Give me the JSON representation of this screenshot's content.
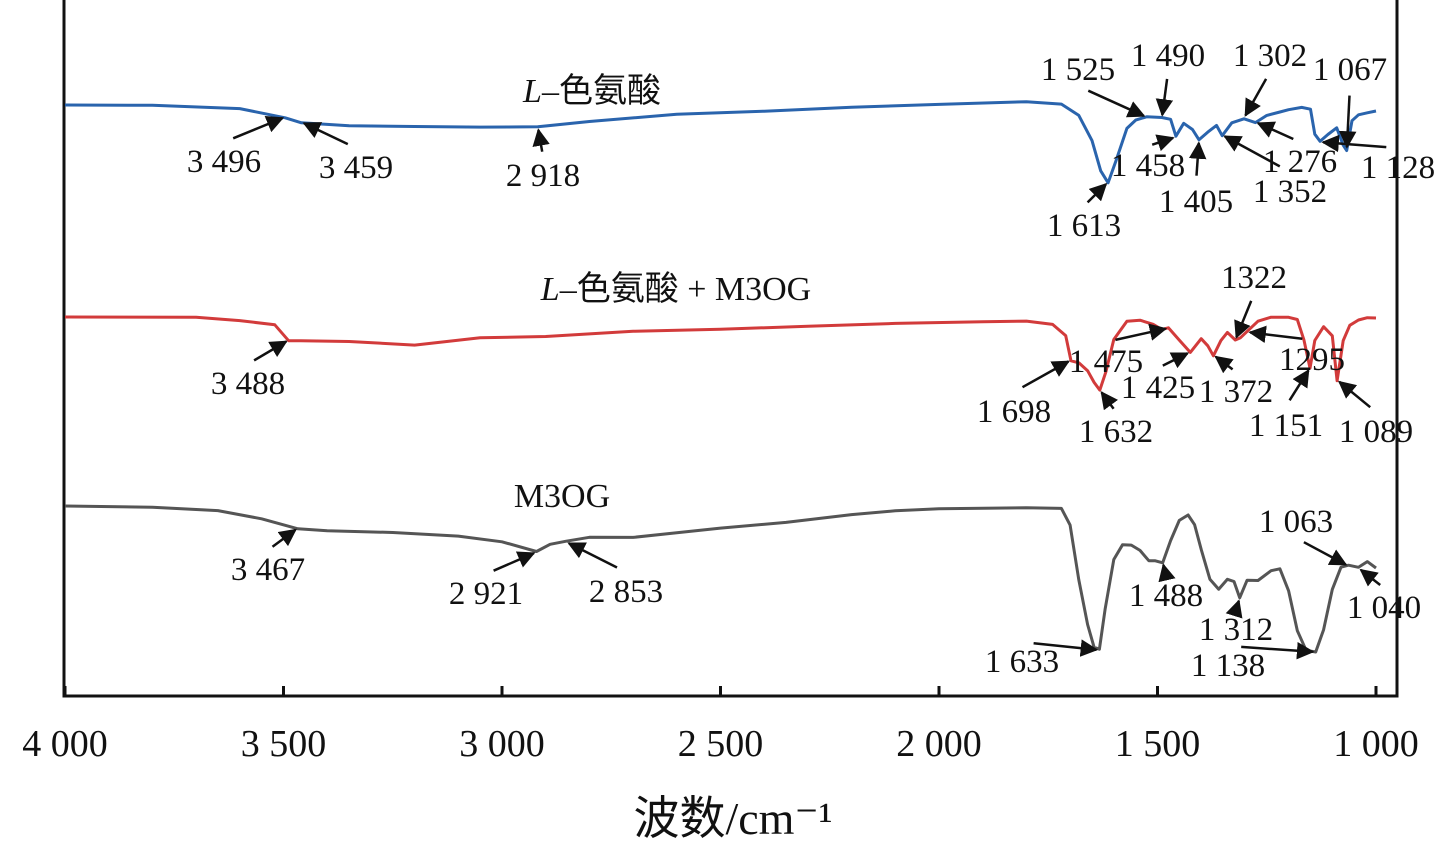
{
  "chart_data": {
    "type": "line",
    "xlabel": "波数/cm⁻¹",
    "ylabel": "",
    "xlim": [
      4000,
      980
    ],
    "x_reversed": true,
    "xticks": [
      4000,
      3500,
      3000,
      2500,
      2000,
      1500,
      1000
    ],
    "xtick_labels": [
      "4 000",
      "3 500",
      "3 000",
      "2 500",
      "2 000",
      "1 500",
      "1 000"
    ],
    "grid": false,
    "legend": "none",
    "series": [
      {
        "name": "L–色氨酸",
        "label_prefix": "L",
        "label_suffix": "–色氨酸",
        "color": "#2a64ad",
        "points": [
          [
            4000,
            105
          ],
          [
            3800,
            105
          ],
          [
            3600,
            108
          ],
          [
            3496,
            117
          ],
          [
            3459,
            122
          ],
          [
            3350,
            125
          ],
          [
            3200,
            126
          ],
          [
            3050,
            127
          ],
          [
            2918,
            127
          ],
          [
            2800,
            122
          ],
          [
            2600,
            115
          ],
          [
            2400,
            112
          ],
          [
            2200,
            108
          ],
          [
            2000,
            105
          ],
          [
            1800,
            102
          ],
          [
            1720,
            104
          ],
          [
            1680,
            115
          ],
          [
            1650,
            140
          ],
          [
            1630,
            170
          ],
          [
            1613,
            182
          ],
          [
            1595,
            160
          ],
          [
            1570,
            128
          ],
          [
            1550,
            120
          ],
          [
            1525,
            117
          ],
          [
            1490,
            118
          ],
          [
            1470,
            120
          ],
          [
            1458,
            137
          ],
          [
            1440,
            124
          ],
          [
            1420,
            130
          ],
          [
            1405,
            140
          ],
          [
            1385,
            132
          ],
          [
            1365,
            125
          ],
          [
            1352,
            135
          ],
          [
            1330,
            122
          ],
          [
            1302,
            118
          ],
          [
            1276,
            122
          ],
          [
            1250,
            115
          ],
          [
            1220,
            112
          ],
          [
            1200,
            110
          ],
          [
            1170,
            108
          ],
          [
            1150,
            110
          ],
          [
            1140,
            135
          ],
          [
            1128,
            142
          ],
          [
            1110,
            135
          ],
          [
            1090,
            128
          ],
          [
            1075,
            145
          ],
          [
            1067,
            150
          ],
          [
            1055,
            120
          ],
          [
            1040,
            114
          ],
          [
            1020,
            112
          ],
          [
            1000,
            111
          ]
        ],
        "annotations": [
          {
            "text": "3 496",
            "x": 3496
          },
          {
            "text": "3 459",
            "x": 3459
          },
          {
            "text": "2 918",
            "x": 2918
          },
          {
            "text": "1 613",
            "x": 1613
          },
          {
            "text": "1 525",
            "x": 1525
          },
          {
            "text": "1 490",
            "x": 1490
          },
          {
            "text": "1 458",
            "x": 1458
          },
          {
            "text": "1 405",
            "x": 1405
          },
          {
            "text": "1 352",
            "x": 1352
          },
          {
            "text": "1 302",
            "x": 1302
          },
          {
            "text": "1 276",
            "x": 1276
          },
          {
            "text": "1 128",
            "x": 1128
          },
          {
            "text": "1 067",
            "x": 1067
          }
        ]
      },
      {
        "name": "L–色氨酸 + M3OG",
        "label_prefix": "L",
        "label_suffix": "–色氨酸 + M3OG",
        "color": "#d23b3b",
        "points": [
          [
            4000,
            317
          ],
          [
            3700,
            317
          ],
          [
            3600,
            320
          ],
          [
            3520,
            324
          ],
          [
            3488,
            340
          ],
          [
            3460,
            340
          ],
          [
            3350,
            341
          ],
          [
            3200,
            345
          ],
          [
            3050,
            338
          ],
          [
            2900,
            337
          ],
          [
            2700,
            332
          ],
          [
            2500,
            330
          ],
          [
            2300,
            327
          ],
          [
            2100,
            324
          ],
          [
            1900,
            322
          ],
          [
            1800,
            321
          ],
          [
            1740,
            324
          ],
          [
            1710,
            335
          ],
          [
            1698,
            360
          ],
          [
            1680,
            362
          ],
          [
            1660,
            370
          ],
          [
            1645,
            382
          ],
          [
            1632,
            390
          ],
          [
            1618,
            372
          ],
          [
            1600,
            340
          ],
          [
            1570,
            322
          ],
          [
            1540,
            321
          ],
          [
            1510,
            325
          ],
          [
            1490,
            330
          ],
          [
            1475,
            328
          ],
          [
            1450,
            340
          ],
          [
            1425,
            352
          ],
          [
            1400,
            338
          ],
          [
            1385,
            345
          ],
          [
            1372,
            355
          ],
          [
            1355,
            340
          ],
          [
            1340,
            332
          ],
          [
            1322,
            340
          ],
          [
            1310,
            338
          ],
          [
            1295,
            332
          ],
          [
            1270,
            322
          ],
          [
            1240,
            318
          ],
          [
            1200,
            318
          ],
          [
            1180,
            320
          ],
          [
            1165,
            340
          ],
          [
            1151,
            368
          ],
          [
            1140,
            340
          ],
          [
            1120,
            326
          ],
          [
            1100,
            335
          ],
          [
            1089,
            380
          ],
          [
            1075,
            340
          ],
          [
            1060,
            325
          ],
          [
            1040,
            320
          ],
          [
            1020,
            318
          ],
          [
            1000,
            318
          ]
        ],
        "annotations": [
          {
            "text": "3 488",
            "x": 3488
          },
          {
            "text": "1 698",
            "x": 1698
          },
          {
            "text": "1 632",
            "x": 1632
          },
          {
            "text": "1 475",
            "x": 1475
          },
          {
            "text": "1 425",
            "x": 1425
          },
          {
            "text": "1 372",
            "x": 1372
          },
          {
            "text": "1322",
            "x": 1322
          },
          {
            "text": "1295",
            "x": 1295
          },
          {
            "text": "1 151",
            "x": 1151
          },
          {
            "text": "1 089",
            "x": 1089
          }
        ]
      },
      {
        "name": "M3OG",
        "label_prefix": "",
        "label_suffix": "M3OG",
        "color": "#555555",
        "points": [
          [
            4000,
            506
          ],
          [
            3800,
            507
          ],
          [
            3650,
            510
          ],
          [
            3550,
            518
          ],
          [
            3467,
            528
          ],
          [
            3400,
            530
          ],
          [
            3250,
            532
          ],
          [
            3100,
            536
          ],
          [
            3000,
            542
          ],
          [
            2921,
            552
          ],
          [
            2890,
            545
          ],
          [
            2853,
            542
          ],
          [
            2800,
            538
          ],
          [
            2700,
            538
          ],
          [
            2600,
            533
          ],
          [
            2500,
            528
          ],
          [
            2350,
            522
          ],
          [
            2200,
            514
          ],
          [
            2100,
            510
          ],
          [
            2000,
            508
          ],
          [
            1800,
            507
          ],
          [
            1720,
            508
          ],
          [
            1700,
            525
          ],
          [
            1680,
            580
          ],
          [
            1660,
            625
          ],
          [
            1645,
            648
          ],
          [
            1633,
            650
          ],
          [
            1620,
            610
          ],
          [
            1600,
            560
          ],
          [
            1580,
            545
          ],
          [
            1560,
            545
          ],
          [
            1540,
            550
          ],
          [
            1520,
            560
          ],
          [
            1505,
            560
          ],
          [
            1488,
            562
          ],
          [
            1470,
            540
          ],
          [
            1450,
            520
          ],
          [
            1430,
            515
          ],
          [
            1415,
            525
          ],
          [
            1400,
            550
          ],
          [
            1380,
            580
          ],
          [
            1360,
            590
          ],
          [
            1340,
            580
          ],
          [
            1325,
            582
          ],
          [
            1312,
            598
          ],
          [
            1295,
            580
          ],
          [
            1270,
            580
          ],
          [
            1240,
            570
          ],
          [
            1220,
            568
          ],
          [
            1200,
            590
          ],
          [
            1180,
            630
          ],
          [
            1160,
            650
          ],
          [
            1138,
            652
          ],
          [
            1120,
            630
          ],
          [
            1100,
            590
          ],
          [
            1080,
            568
          ],
          [
            1063,
            566
          ],
          [
            1040,
            568
          ],
          [
            1020,
            562
          ],
          [
            1000,
            568
          ]
        ],
        "annotations": [
          {
            "text": "3 467",
            "x": 3467
          },
          {
            "text": "2 921",
            "x": 2921
          },
          {
            "text": "2 853",
            "x": 2853
          },
          {
            "text": "1 633",
            "x": 1633
          },
          {
            "text": "1 488",
            "x": 1488
          },
          {
            "text": "1 312",
            "x": 1312
          },
          {
            "text": "1 138",
            "x": 1138
          },
          {
            "text": "1 063",
            "x": 1063
          },
          {
            "text": "1 040",
            "x": 1040
          }
        ]
      }
    ]
  }
}
